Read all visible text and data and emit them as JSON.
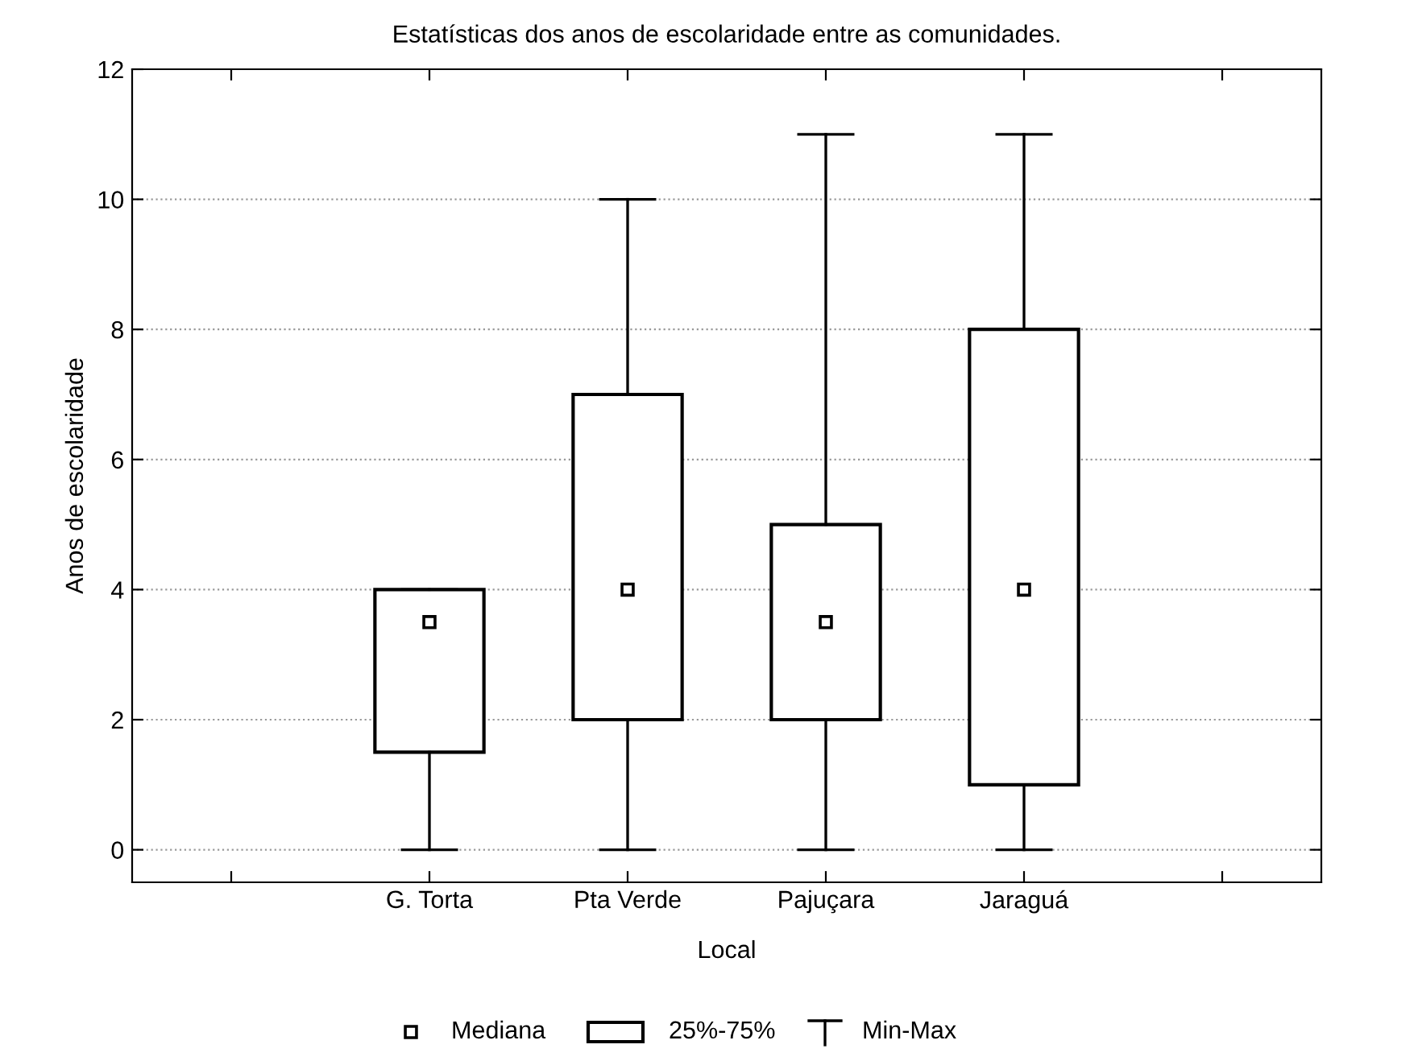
{
  "chart_data": {
    "type": "box",
    "title": "Estatísticas dos anos de escolaridade entre as comunidades.",
    "xlabel": "Local",
    "ylabel": "Anos de escolaridade",
    "categories": [
      "G. Torta",
      "Pta Verde",
      "Pajuçara",
      "Jaraguá"
    ],
    "boxes": [
      {
        "low": 0,
        "q1": 1.5,
        "median": 3.5,
        "q3": 4,
        "high": 4
      },
      {
        "low": 0,
        "q1": 2,
        "median": 4,
        "q3": 7,
        "high": 10
      },
      {
        "low": 0,
        "q1": 2,
        "median": 3.5,
        "q3": 5,
        "high": 11
      },
      {
        "low": 0,
        "q1": 1,
        "median": 4,
        "q3": 8,
        "high": 11
      }
    ],
    "color": "#000000",
    "marker": "square",
    "ylim": [
      -0.5,
      12
    ],
    "yticks": [
      0,
      2,
      4,
      6,
      8,
      10,
      12
    ],
    "grid": "y",
    "annotations": [
      "Mediana",
      "25%-75%",
      "Min-Max"
    ]
  }
}
